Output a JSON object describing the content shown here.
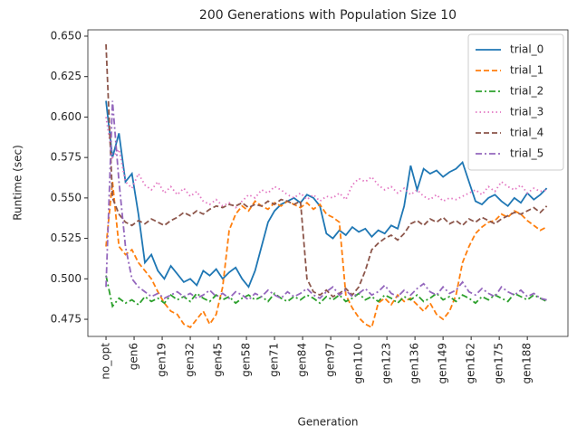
{
  "chart_data": {
    "type": "line",
    "title": "200 Generations with Population Size 10",
    "xlabel": "Generation",
    "ylabel": "Runtime (sec)",
    "x": [
      0,
      3,
      6,
      9,
      12,
      15,
      18,
      21,
      24,
      27,
      30,
      33,
      36,
      39,
      42,
      45,
      48,
      51,
      54,
      57,
      60,
      63,
      66,
      69,
      72,
      75,
      78,
      81,
      84,
      87,
      90,
      93,
      96,
      99,
      102,
      105,
      108,
      111,
      114,
      117,
      120,
      123,
      126,
      129,
      132,
      135,
      138,
      141,
      144,
      147,
      150,
      153,
      156,
      159,
      162,
      165,
      168,
      171,
      174,
      177,
      180,
      183,
      186,
      189,
      192,
      195,
      198,
      201,
      204
    ],
    "xlim": [
      -8.4,
      213.8
    ],
    "xticks": [
      {
        "value": 0,
        "label": "no_opt"
      },
      {
        "value": 13,
        "label": "gen6"
      },
      {
        "value": 26,
        "label": "gen19"
      },
      {
        "value": 39,
        "label": "gen32"
      },
      {
        "value": 52,
        "label": "gen45"
      },
      {
        "value": 65,
        "label": "gen58"
      },
      {
        "value": 78,
        "label": "gen71"
      },
      {
        "value": 91,
        "label": "gen84"
      },
      {
        "value": 104,
        "label": "gen97"
      },
      {
        "value": 117,
        "label": "gen110"
      },
      {
        "value": 130,
        "label": "gen123"
      },
      {
        "value": 143,
        "label": "gen136"
      },
      {
        "value": 156,
        "label": "gen149"
      },
      {
        "value": 169,
        "label": "gen162"
      },
      {
        "value": 182,
        "label": "gen175"
      },
      {
        "value": 195,
        "label": "gen188"
      }
    ],
    "ylim": [
      0.4644,
      0.6539
    ],
    "yticks": [
      {
        "value": 0.475,
        "label": "0.475"
      },
      {
        "value": 0.5,
        "label": "0.500"
      },
      {
        "value": 0.525,
        "label": "0.525"
      },
      {
        "value": 0.55,
        "label": "0.550"
      },
      {
        "value": 0.575,
        "label": "0.575"
      },
      {
        "value": 0.6,
        "label": "0.600"
      },
      {
        "value": 0.625,
        "label": "0.625"
      },
      {
        "value": 0.65,
        "label": "0.650"
      }
    ],
    "legend": "upper right",
    "series": [
      {
        "name": "trial_0",
        "color": "#1f77b4",
        "linestyle": "solid",
        "values": [
          0.61,
          0.575,
          0.59,
          0.56,
          0.565,
          0.54,
          0.51,
          0.515,
          0.505,
          0.5,
          0.508,
          0.503,
          0.498,
          0.5,
          0.496,
          0.505,
          0.502,
          0.506,
          0.5,
          0.504,
          0.507,
          0.5,
          0.495,
          0.505,
          0.52,
          0.535,
          0.542,
          0.546,
          0.548,
          0.55,
          0.547,
          0.552,
          0.55,
          0.545,
          0.528,
          0.525,
          0.53,
          0.527,
          0.532,
          0.529,
          0.531,
          0.526,
          0.53,
          0.528,
          0.533,
          0.531,
          0.545,
          0.57,
          0.555,
          0.568,
          0.565,
          0.567,
          0.563,
          0.566,
          0.568,
          0.572,
          0.56,
          0.548,
          0.546,
          0.55,
          0.552,
          0.548,
          0.545,
          0.55,
          0.547,
          0.553,
          0.549,
          0.552,
          0.556
        ]
      },
      {
        "name": "trial_1",
        "color": "#ff7f0e",
        "linestyle": "dashed",
        "values": [
          0.52,
          0.56,
          0.52,
          0.515,
          0.518,
          0.51,
          0.505,
          0.5,
          0.492,
          0.485,
          0.48,
          0.478,
          0.472,
          0.47,
          0.475,
          0.48,
          0.472,
          0.478,
          0.495,
          0.53,
          0.54,
          0.545,
          0.542,
          0.548,
          0.545,
          0.543,
          0.547,
          0.545,
          0.548,
          0.546,
          0.544,
          0.547,
          0.543,
          0.546,
          0.54,
          0.538,
          0.535,
          0.49,
          0.482,
          0.476,
          0.472,
          0.47,
          0.485,
          0.488,
          0.484,
          0.49,
          0.486,
          0.488,
          0.484,
          0.48,
          0.485,
          0.478,
          0.475,
          0.48,
          0.49,
          0.51,
          0.52,
          0.528,
          0.532,
          0.535,
          0.536,
          0.54,
          0.538,
          0.542,
          0.54,
          0.536,
          0.533,
          0.53,
          0.532
        ]
      },
      {
        "name": "trial_2",
        "color": "#2ca02c",
        "linestyle": "dashdot",
        "values": [
          0.502,
          0.483,
          0.488,
          0.485,
          0.487,
          0.484,
          0.489,
          0.486,
          0.488,
          0.485,
          0.49,
          0.487,
          0.489,
          0.486,
          0.491,
          0.488,
          0.486,
          0.49,
          0.487,
          0.489,
          0.485,
          0.488,
          0.49,
          0.487,
          0.489,
          0.486,
          0.491,
          0.488,
          0.486,
          0.489,
          0.487,
          0.49,
          0.488,
          0.485,
          0.489,
          0.487,
          0.49,
          0.486,
          0.488,
          0.491,
          0.487,
          0.489,
          0.486,
          0.49,
          0.488,
          0.485,
          0.489,
          0.487,
          0.49,
          0.486,
          0.488,
          0.491,
          0.487,
          0.489,
          0.486,
          0.49,
          0.488,
          0.485,
          0.489,
          0.487,
          0.49,
          0.488,
          0.486,
          0.491,
          0.489,
          0.487,
          0.49,
          0.488,
          0.486
        ]
      },
      {
        "name": "trial_3",
        "color": "#e377c2",
        "linestyle": "dotted",
        "values": [
          0.6,
          0.575,
          0.58,
          0.56,
          0.556,
          0.565,
          0.558,
          0.555,
          0.56,
          0.553,
          0.557,
          0.552,
          0.556,
          0.551,
          0.554,
          0.548,
          0.546,
          0.549,
          0.545,
          0.547,
          0.544,
          0.548,
          0.552,
          0.55,
          0.555,
          0.553,
          0.557,
          0.555,
          0.552,
          0.55,
          0.553,
          0.549,
          0.552,
          0.548,
          0.551,
          0.55,
          0.553,
          0.549,
          0.558,
          0.562,
          0.56,
          0.563,
          0.558,
          0.555,
          0.557,
          0.553,
          0.556,
          0.552,
          0.555,
          0.551,
          0.549,
          0.552,
          0.548,
          0.55,
          0.549,
          0.551,
          0.553,
          0.555,
          0.552,
          0.557,
          0.554,
          0.56,
          0.557,
          0.555,
          0.558,
          0.553,
          0.556,
          0.554,
          0.555
        ]
      },
      {
        "name": "trial_4",
        "color": "#8c564b",
        "linestyle": "dashed",
        "values": [
          0.645,
          0.55,
          0.54,
          0.535,
          0.533,
          0.536,
          0.534,
          0.537,
          0.535,
          0.533,
          0.536,
          0.538,
          0.541,
          0.539,
          0.542,
          0.54,
          0.543,
          0.545,
          0.544,
          0.546,
          0.545,
          0.547,
          0.544,
          0.546,
          0.545,
          0.548,
          0.546,
          0.549,
          0.548,
          0.546,
          0.548,
          0.5,
          0.492,
          0.49,
          0.493,
          0.489,
          0.491,
          0.494,
          0.49,
          0.495,
          0.505,
          0.518,
          0.522,
          0.525,
          0.527,
          0.524,
          0.528,
          0.534,
          0.536,
          0.533,
          0.537,
          0.535,
          0.538,
          0.534,
          0.536,
          0.533,
          0.537,
          0.535,
          0.538,
          0.536,
          0.534,
          0.537,
          0.539,
          0.541,
          0.54,
          0.542,
          0.544,
          0.541,
          0.545
        ]
      },
      {
        "name": "trial_5",
        "color": "#9467bd",
        "linestyle": "dashdot",
        "values": [
          0.495,
          0.61,
          0.56,
          0.52,
          0.5,
          0.495,
          0.492,
          0.489,
          0.491,
          0.488,
          0.49,
          0.492,
          0.489,
          0.491,
          0.488,
          0.49,
          0.493,
          0.489,
          0.491,
          0.488,
          0.492,
          0.49,
          0.487,
          0.491,
          0.489,
          0.493,
          0.49,
          0.488,
          0.492,
          0.489,
          0.491,
          0.494,
          0.49,
          0.488,
          0.492,
          0.495,
          0.49,
          0.493,
          0.489,
          0.491,
          0.494,
          0.49,
          0.492,
          0.496,
          0.491,
          0.489,
          0.493,
          0.49,
          0.494,
          0.497,
          0.492,
          0.49,
          0.495,
          0.491,
          0.493,
          0.498,
          0.492,
          0.49,
          0.494,
          0.491,
          0.489,
          0.495,
          0.492,
          0.49,
          0.493,
          0.489,
          0.491,
          0.488,
          0.487
        ]
      }
    ]
  }
}
